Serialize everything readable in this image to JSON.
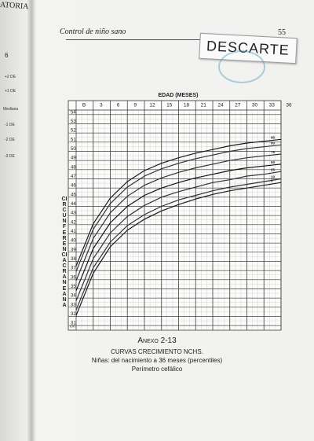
{
  "left_page": {
    "header": "ATORIA",
    "box": "6",
    "labels": [
      "+2 DE",
      "+1 DE",
      "Mediana",
      "-1 DE",
      "-2 DE",
      "-3 DE"
    ]
  },
  "header": {
    "title": "Control de niño sano",
    "page": "55"
  },
  "stamp": "DESCARTE",
  "caption": {
    "annex": "Anexo 2-13",
    "measure": "Perímetro cefálico"
  },
  "chart_data": {
    "type": "line",
    "title": "CURVAS CRECIMIENTO NCHS.",
    "subtitle": "Niñas: del nacimiento a 36 meses (percentiles)",
    "x_label": "EDAD (MESES)",
    "y_label": "CIRCUNFERENCIA CRANEANA",
    "y_unit": "cm",
    "x": [
      0,
      3,
      6,
      9,
      12,
      15,
      18,
      21,
      24,
      27,
      30,
      33,
      36
    ],
    "xlim": [
      0,
      36
    ],
    "xticks": [
      {
        "value": 0,
        "label": "B"
      },
      3,
      6,
      9,
      12,
      15,
      18,
      21,
      24,
      27,
      30,
      33,
      36
    ],
    "ylim": [
      30.5,
      54.5
    ],
    "yticks": [
      31,
      32,
      33,
      34,
      35,
      36,
      37,
      38,
      39,
      40,
      41,
      42,
      43,
      44,
      45,
      46,
      47,
      48,
      49,
      50,
      51,
      52,
      53,
      54
    ],
    "grid": true,
    "series": [
      {
        "name": "95",
        "color": "#1a1a1a",
        "values": [
          37.5,
          42.1,
          44.9,
          46.7,
          47.9,
          48.7,
          49.3,
          49.8,
          50.2,
          50.6,
          50.9,
          51.1,
          51.3
        ]
      },
      {
        "name": "90",
        "color": "#333333",
        "values": [
          36.9,
          41.5,
          44.3,
          46.1,
          47.3,
          48.1,
          48.7,
          49.2,
          49.6,
          50.0,
          50.3,
          50.5,
          50.7
        ]
      },
      {
        "name": "75",
        "color": "#333333",
        "values": [
          35.9,
          40.5,
          43.3,
          45.1,
          46.3,
          47.1,
          47.7,
          48.2,
          48.6,
          49.0,
          49.3,
          49.5,
          49.7
        ]
      },
      {
        "name": "50",
        "color": "#111111",
        "values": [
          34.8,
          39.4,
          42.2,
          44.0,
          45.2,
          46.0,
          46.6,
          47.1,
          47.5,
          47.9,
          48.2,
          48.4,
          48.6
        ]
      },
      {
        "name": "25",
        "color": "#333333",
        "values": [
          33.7,
          38.3,
          41.1,
          42.9,
          44.1,
          45.0,
          45.6,
          46.1,
          46.6,
          46.9,
          47.3,
          47.5,
          47.8
        ]
      },
      {
        "name": "10",
        "color": "#333333",
        "values": [
          32.7,
          37.3,
          40.1,
          41.9,
          43.1,
          44.0,
          44.7,
          45.2,
          45.7,
          46.1,
          46.4,
          46.7,
          47.0
        ]
      },
      {
        "name": "5",
        "color": "#1a1a1a",
        "values": [
          32.1,
          36.7,
          39.6,
          41.4,
          42.6,
          43.5,
          44.2,
          44.8,
          45.3,
          45.7,
          46.0,
          46.3,
          46.6
        ]
      }
    ]
  }
}
